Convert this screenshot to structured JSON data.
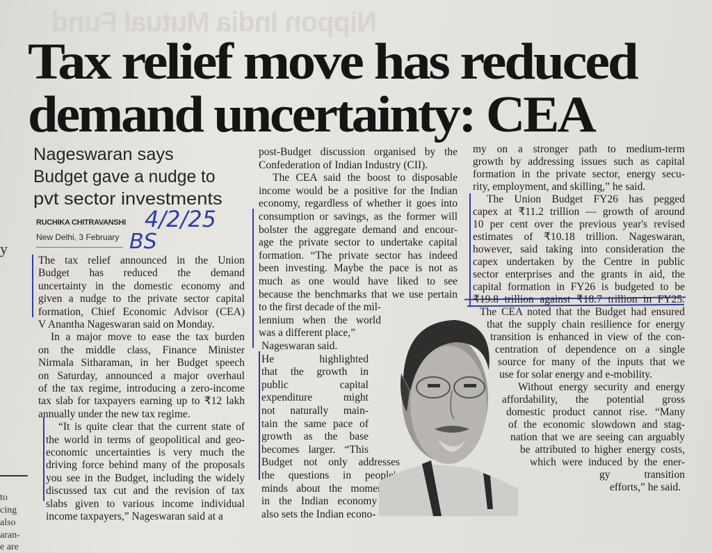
{
  "headline": [
    "Tax relief move has reduced",
    "demand uncertainty: CEA"
  ],
  "subhead": [
    "Nageswaran says",
    "Budget gave a nudge to",
    "pvt sector investments"
  ],
  "byline": "RUCHIKA CHITRAVANSHI",
  "dateline": "New Delhi, 3 February",
  "handwritten": {
    "date": "4/2/25",
    "source": "BS"
  },
  "bleed_through": "Nippon India Mutual Fund",
  "left_edge_fragments": [
    "y",
    "to",
    "cing",
    "also",
    "aran-",
    "e are"
  ],
  "columns": [
    {
      "lines": [
        "The tax relief announced in the Union",
        "Budget has reduced the demand",
        "uncertainty in the domestic economy and",
        "given a nudge to the private sector capital",
        "formation, Chief Economic Advisor (CEA)",
        "V Anantha Nageswaran said on Monday.",
        "In a major move to ease the tax burden",
        "on the middle class, Finance Minister",
        "Nirmala Sitharaman, in her Budget speech",
        "on Saturday, announced a major overhaul",
        "of the tax regime, introducing a zero-income",
        "tax slab for taxpayers earning up to ₹12 lakh",
        "annually under the new tax regime.",
        "“It is quite clear that the current state of",
        "the world in terms of geopolitical and geo-",
        "economic uncertainties is very much the",
        "driving force behind many of the proposals",
        "you see in the Budget, including the widely",
        "discussed tax cut and the revision of tax",
        "slabs given to various income individual",
        "income taxpayers,” Nageswaran said at a"
      ]
    },
    {
      "lines": [
        "post-Budget discussion organised by the",
        "Confederation of Indian Industry (CII).",
        "The CEA said the boost to disposable",
        "income would be a positive for the Indian",
        "economy, regardless of whether it goes into",
        "consumption or savings, as the former will",
        "bolster the aggregate demand and encour-",
        "age the private sector to undertake capital",
        "formation. “The private sector has indeed",
        "been investing. Maybe the pace is not as",
        "much as one would have liked to see",
        "because the benchmarks that we use pertain",
        "to the first decade of the mil-",
        "lennium when the world",
        "was a different place,”",
        "Nageswaran said.",
        "He highlighted",
        "that the growth in",
        "public capital",
        "expenditure might",
        "not naturally main-",
        "tain the same pace of",
        "growth as the base",
        "becomes larger. “This",
        "Budget not only addresses",
        "the questions in people's",
        "minds about the momentum",
        "in the Indian economy but",
        "also sets the Indian econo-"
      ]
    },
    {
      "lines": [
        "my on a stronger path to medium-term",
        "growth by addressing issues such as capital",
        "formation in the private sector, energy secu-",
        "rity, employment, and skilling,” he said.",
        "The Union Budget FY26 has pegged",
        "capex at ₹11.2 trillion — growth of around",
        "10 per cent over the previous year's revised",
        "estimates of ₹10.18 trillion. Nageswaran,",
        "however, said taking into consideration the",
        "capex undertaken by the Centre in public",
        "sector enterprises and the grants in aid, the",
        "capital formation in FY26 is budgeted to be",
        "₹19.8 trillion against ₹18.7 trillion in FY25.",
        "The CEA noted that the Budget had ensured",
        "that the supply chain resilience for energy",
        "transition is enhanced in view of the con-",
        "centration of dependence on a single",
        "source for many of the inputs that we",
        "use for solar energy and e-mobility.",
        "Without energy security and energy",
        "affordability, the potential gross",
        "domestic product cannot rise. “Many",
        "of the economic slowdown and stag-",
        "nation that we are seeing can arguably",
        "be attributed to higher energy costs,",
        "which were induced by the ener-",
        "gy transition",
        "efforts,” he said."
      ]
    }
  ],
  "colors": {
    "paper": "#e4e2dd",
    "ink": "#1d1c1b",
    "pen": "#2e3f9e"
  }
}
